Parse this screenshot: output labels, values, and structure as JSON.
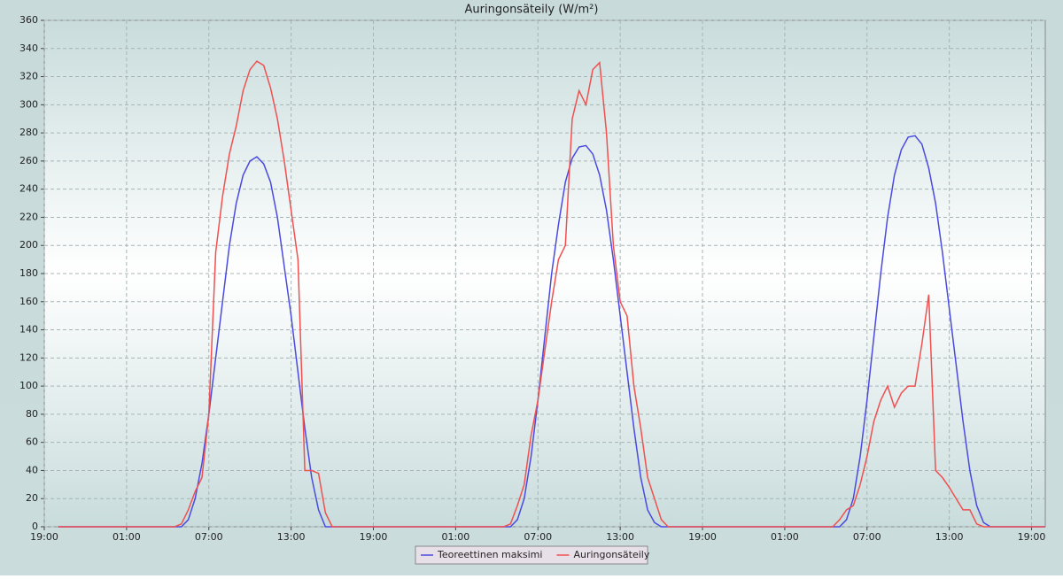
{
  "chart_data": {
    "type": "line",
    "title": "Auringonsäteily (W/m²)",
    "x": [
      1,
      9.5,
      10,
      10.5,
      11,
      11.5,
      12,
      12.5,
      13,
      13.5,
      14,
      14.5,
      15,
      15.5,
      16,
      16.5,
      17,
      17.5,
      18,
      18.5,
      19,
      19.5,
      20,
      20.5,
      21,
      33.5,
      34,
      34.5,
      35,
      35.5,
      36,
      36.5,
      37,
      37.5,
      38,
      38.5,
      39,
      39.5,
      40,
      40.5,
      41,
      41.5,
      42,
      42.5,
      43,
      43.5,
      44,
      44.5,
      45,
      45.5,
      57.5,
      58,
      58.5,
      59,
      59.5,
      60,
      60.5,
      61,
      61.5,
      62,
      62.5,
      63,
      63.5,
      64,
      64.5,
      65,
      65.5,
      66,
      66.5,
      67,
      67.5,
      68,
      68.5,
      69,
      69.5,
      73
    ],
    "series": [
      {
        "name": "Teoreettinen maksimi",
        "color": "#4a4ae0",
        "values": [
          0,
          0,
          0,
          5,
          20,
          45,
          80,
          120,
          160,
          200,
          230,
          250,
          260,
          263,
          258,
          245,
          220,
          185,
          150,
          110,
          70,
          35,
          12,
          0,
          0,
          0,
          0,
          5,
          20,
          50,
          90,
          135,
          180,
          215,
          245,
          262,
          270,
          271,
          265,
          250,
          225,
          190,
          150,
          110,
          70,
          35,
          12,
          3,
          0,
          0,
          0,
          0,
          5,
          20,
          50,
          90,
          135,
          180,
          220,
          250,
          268,
          277,
          278,
          272,
          255,
          230,
          195,
          155,
          115,
          75,
          40,
          15,
          3,
          0,
          0,
          0
        ]
      },
      {
        "name": "Auringonsäteily",
        "color": "#f05050",
        "values": [
          0,
          0,
          2,
          12,
          25,
          35,
          80,
          195,
          235,
          265,
          285,
          310,
          325,
          331,
          328,
          312,
          290,
          260,
          225,
          190,
          40,
          40,
          38,
          10,
          0,
          0,
          2,
          15,
          30,
          65,
          90,
          125,
          160,
          190,
          200,
          290,
          310,
          300,
          325,
          330,
          280,
          200,
          160,
          150,
          100,
          70,
          35,
          20,
          5,
          0,
          0,
          5,
          12,
          15,
          30,
          50,
          75,
          90,
          100,
          85,
          95,
          100,
          100,
          130,
          165,
          40,
          35,
          28,
          20,
          12,
          12,
          2,
          0,
          0,
          0,
          0
        ]
      }
    ],
    "xlim": [
      0,
      73
    ],
    "xticks": [
      {
        "value": 0,
        "label": "19:00"
      },
      {
        "value": 6,
        "label": "01:00"
      },
      {
        "value": 12,
        "label": "07:00"
      },
      {
        "value": 18,
        "label": "13:00"
      },
      {
        "value": 24,
        "label": "19:00"
      },
      {
        "value": 30,
        "label": "01:00"
      },
      {
        "value": 36,
        "label": "07:00"
      },
      {
        "value": 42,
        "label": "13:00"
      },
      {
        "value": 48,
        "label": "19:00"
      },
      {
        "value": 54,
        "label": "01:00"
      },
      {
        "value": 60,
        "label": "07:00"
      },
      {
        "value": 66,
        "label": "13:00"
      },
      {
        "value": 72,
        "label": "19:00"
      }
    ],
    "ylim": [
      0,
      360
    ],
    "yticks": [
      0,
      20,
      40,
      60,
      80,
      100,
      120,
      140,
      160,
      180,
      200,
      220,
      240,
      260,
      280,
      300,
      320,
      340,
      360
    ],
    "grid": true,
    "legend": "bottom"
  }
}
